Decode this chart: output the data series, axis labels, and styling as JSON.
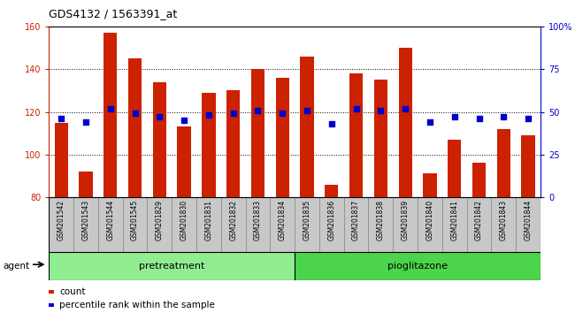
{
  "title": "GDS4132 / 1563391_at",
  "samples": [
    "GSM201542",
    "GSM201543",
    "GSM201544",
    "GSM201545",
    "GSM201829",
    "GSM201830",
    "GSM201831",
    "GSM201832",
    "GSM201833",
    "GSM201834",
    "GSM201835",
    "GSM201836",
    "GSM201837",
    "GSM201838",
    "GSM201839",
    "GSM201840",
    "GSM201841",
    "GSM201842",
    "GSM201843",
    "GSM201844"
  ],
  "counts": [
    115,
    92,
    157,
    145,
    134,
    113,
    129,
    130,
    140,
    136,
    146,
    86,
    138,
    135,
    150,
    91,
    107,
    96,
    112,
    109
  ],
  "percentiles": [
    46,
    44,
    52,
    49,
    47,
    45,
    48,
    49,
    51,
    49,
    51,
    43,
    52,
    51,
    52,
    44,
    47,
    46,
    47,
    46
  ],
  "groups": [
    {
      "label": "pretreatment",
      "start": 0,
      "end": 10,
      "color": "#90EE90"
    },
    {
      "label": "pioglitazone",
      "start": 10,
      "end": 20,
      "color": "#4CD44C"
    }
  ],
  "ylim": [
    80,
    160
  ],
  "yticks": [
    80,
    100,
    120,
    140,
    160
  ],
  "bar_color": "#CC2200",
  "dot_color": "#0000CC",
  "plot_bg": "#ffffff",
  "agent_label": "agent",
  "legend_count": "count",
  "legend_percentile": "percentile rank within the sample",
  "right_yticks": [
    0,
    25,
    50,
    75,
    100
  ],
  "right_yticklabels": [
    "0",
    "25",
    "50",
    "75",
    "100%"
  ]
}
